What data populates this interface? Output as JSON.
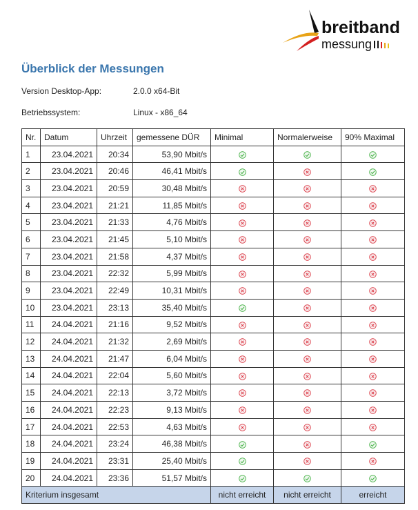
{
  "logo": {
    "line1": "breitband",
    "line2": "messung"
  },
  "header": {
    "title": "Überblick der Messungen"
  },
  "info": [
    {
      "label": "Version Desktop-App:",
      "value": "2.0.0 x64-Bit"
    },
    {
      "label": "Betriebssystem:",
      "value": "Linux - x86_64"
    }
  ],
  "table": {
    "columns": [
      "Nr.",
      "Datum",
      "Uhrzeit",
      "gemessene DÜR",
      "Minimal",
      "Normalerweise",
      "90% Maximal"
    ],
    "rows": [
      [
        1,
        "23.04.2021",
        "20:34",
        "53,90 Mbit/s",
        true,
        true,
        true
      ],
      [
        2,
        "23.04.2021",
        "20:46",
        "46,41 Mbit/s",
        true,
        false,
        true
      ],
      [
        3,
        "23.04.2021",
        "20:59",
        "30,48 Mbit/s",
        false,
        false,
        false
      ],
      [
        4,
        "23.04.2021",
        "21:21",
        "11,85 Mbit/s",
        false,
        false,
        false
      ],
      [
        5,
        "23.04.2021",
        "21:33",
        "4,76 Mbit/s",
        false,
        false,
        false
      ],
      [
        6,
        "23.04.2021",
        "21:45",
        "5,10 Mbit/s",
        false,
        false,
        false
      ],
      [
        7,
        "23.04.2021",
        "21:58",
        "4,37 Mbit/s",
        false,
        false,
        false
      ],
      [
        8,
        "23.04.2021",
        "22:32",
        "5,99 Mbit/s",
        false,
        false,
        false
      ],
      [
        9,
        "23.04.2021",
        "22:49",
        "10,31 Mbit/s",
        false,
        false,
        false
      ],
      [
        10,
        "23.04.2021",
        "23:13",
        "35,40 Mbit/s",
        true,
        false,
        false
      ],
      [
        11,
        "24.04.2021",
        "21:16",
        "9,52 Mbit/s",
        false,
        false,
        false
      ],
      [
        12,
        "24.04.2021",
        "21:32",
        "2,69 Mbit/s",
        false,
        false,
        false
      ],
      [
        13,
        "24.04.2021",
        "21:47",
        "6,04 Mbit/s",
        false,
        false,
        false
      ],
      [
        14,
        "24.04.2021",
        "22:04",
        "5,60 Mbit/s",
        false,
        false,
        false
      ],
      [
        15,
        "24.04.2021",
        "22:13",
        "3,72 Mbit/s",
        false,
        false,
        false
      ],
      [
        16,
        "24.04.2021",
        "22:23",
        "9,13 Mbit/s",
        false,
        false,
        false
      ],
      [
        17,
        "24.04.2021",
        "22:53",
        "4,63 Mbit/s",
        false,
        false,
        false
      ],
      [
        18,
        "24.04.2021",
        "23:24",
        "46,38 Mbit/s",
        true,
        false,
        true
      ],
      [
        19,
        "24.04.2021",
        "23:31",
        "25,40 Mbit/s",
        true,
        false,
        false
      ],
      [
        20,
        "24.04.2021",
        "23:36",
        "51,57 Mbit/s",
        true,
        true,
        true
      ]
    ],
    "footer": [
      "Kriterium insgesamt",
      "nicht erreicht",
      "nicht erreicht",
      "erreicht"
    ]
  }
}
